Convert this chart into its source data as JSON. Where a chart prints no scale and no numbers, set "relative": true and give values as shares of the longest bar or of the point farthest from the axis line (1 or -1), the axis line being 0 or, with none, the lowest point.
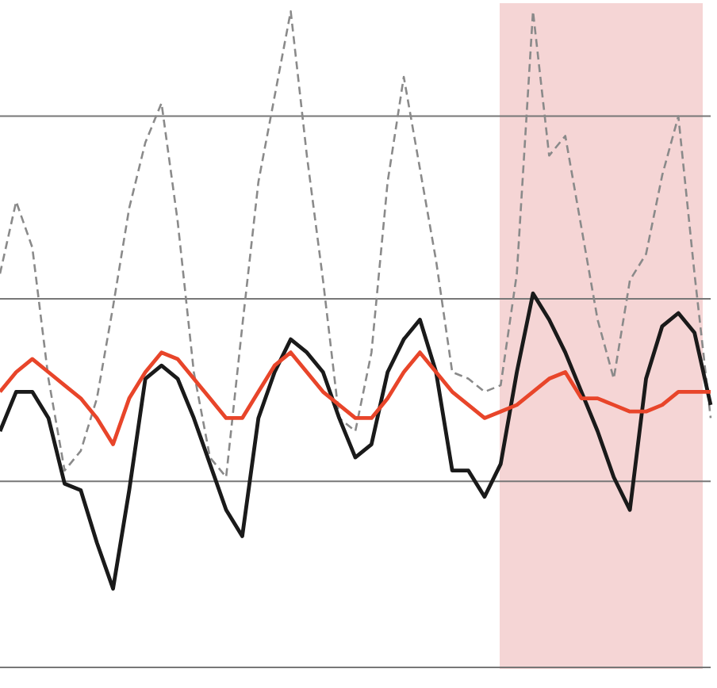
{
  "chart_data": {
    "type": "line",
    "relative": true,
    "tick_labels": false,
    "grid": "y",
    "marker": "none",
    "categories": [
      null,
      null,
      null,
      null,
      null,
      null,
      null,
      null,
      null,
      null,
      null,
      null,
      null,
      null,
      null,
      null,
      null,
      null,
      null,
      null,
      null,
      null,
      null,
      null,
      null,
      null,
      null,
      null,
      null,
      null,
      null,
      null,
      null,
      null,
      null,
      null,
      null,
      null,
      null,
      null,
      null,
      null,
      null,
      null,
      null
    ],
    "series": [
      {
        "color": "#8a8a8a",
        "line_style": "dashed",
        "values": [
          0.6,
          0.71,
          0.64,
          0.44,
          0.3,
          0.33,
          0.41,
          0.55,
          0.7,
          0.8,
          0.86,
          0.68,
          0.45,
          0.32,
          0.29,
          0.52,
          0.74,
          0.87,
          1,
          0.78,
          0.59,
          0.38,
          0.36,
          0.48,
          0.74,
          0.9,
          0.76,
          0.62,
          0.45,
          0.44,
          0.42,
          0.43,
          0.6,
          1,
          0.78,
          0.81,
          0.67,
          0.53,
          0.44,
          0.59,
          0.63,
          0.75,
          0.84,
          0.6,
          0.38
        ]
      },
      {
        "color": "#1a1a1a",
        "line_style": "solid",
        "values": [
          0.36,
          0.42,
          0.42,
          0.38,
          0.28,
          0.27,
          0.19,
          0.12,
          0.27,
          0.44,
          0.46,
          0.44,
          0.38,
          0.31,
          0.24,
          0.2,
          0.38,
          0.45,
          0.5,
          0.48,
          0.45,
          0.38,
          0.32,
          0.34,
          0.45,
          0.5,
          0.53,
          0.45,
          0.3,
          0.3,
          0.26,
          0.31,
          0.45,
          0.57,
          0.53,
          0.48,
          0.42,
          0.36,
          0.29,
          0.24,
          0.44,
          0.52,
          0.54,
          0.51,
          0.4
        ]
      },
      {
        "color": "#e8452a",
        "line_style": "solid",
        "values": [
          0.42,
          0.45,
          0.47,
          0.45,
          0.43,
          0.41,
          0.38,
          0.34,
          0.41,
          0.45,
          0.48,
          0.47,
          0.44,
          0.41,
          0.38,
          0.38,
          0.42,
          0.46,
          0.48,
          0.45,
          0.42,
          0.4,
          0.38,
          0.38,
          0.41,
          0.45,
          0.48,
          0.45,
          0.42,
          0.4,
          0.38,
          0.39,
          0.4,
          0.42,
          0.44,
          0.45,
          0.41,
          0.41,
          0.4,
          0.39,
          0.39,
          0.4,
          0.42,
          0.42,
          0.42
        ]
      }
    ]
  }
}
